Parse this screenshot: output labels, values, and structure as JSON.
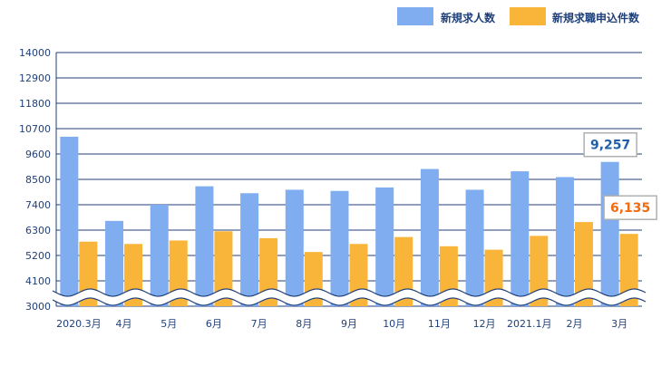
{
  "colors": {
    "series_1": "#7fadf0",
    "series_2": "#f9b53a",
    "axis_text": "#1f3f7a",
    "gridline": "#1f3f7a",
    "callout_1_text": "#1f5fae",
    "callout_2_text": "#f26a12",
    "callout_border": "#b0b0b0"
  },
  "chart_data": {
    "type": "bar",
    "title": "",
    "xlabel": "",
    "ylabel": "",
    "ylim": [
      3000,
      14000
    ],
    "y_axis_break": true,
    "yticks": [
      3000,
      4100,
      5200,
      6300,
      7400,
      8500,
      9600,
      10700,
      11800,
      12900,
      14000
    ],
    "categories": [
      "2020.3月",
      "4月",
      "5月",
      "6月",
      "7月",
      "8月",
      "9月",
      "10月",
      "11月",
      "12月",
      "2021.1月",
      "2月",
      "3月"
    ],
    "series": [
      {
        "name": "新規求人数",
        "values": [
          10350,
          6700,
          7400,
          8200,
          7900,
          8050,
          8000,
          8150,
          8950,
          8050,
          8850,
          8600,
          9257
        ]
      },
      {
        "name": "新規求職申込件数",
        "values": [
          5800,
          5700,
          5850,
          6250,
          5950,
          5350,
          5700,
          6000,
          5600,
          5450,
          6050,
          6650,
          6135
        ]
      }
    ],
    "legend_position": "top-right",
    "grid": true,
    "callouts": [
      {
        "series": 0,
        "category_index": 12,
        "label": "9,257"
      },
      {
        "series": 1,
        "category_index": 12,
        "label": "6,135"
      }
    ]
  }
}
